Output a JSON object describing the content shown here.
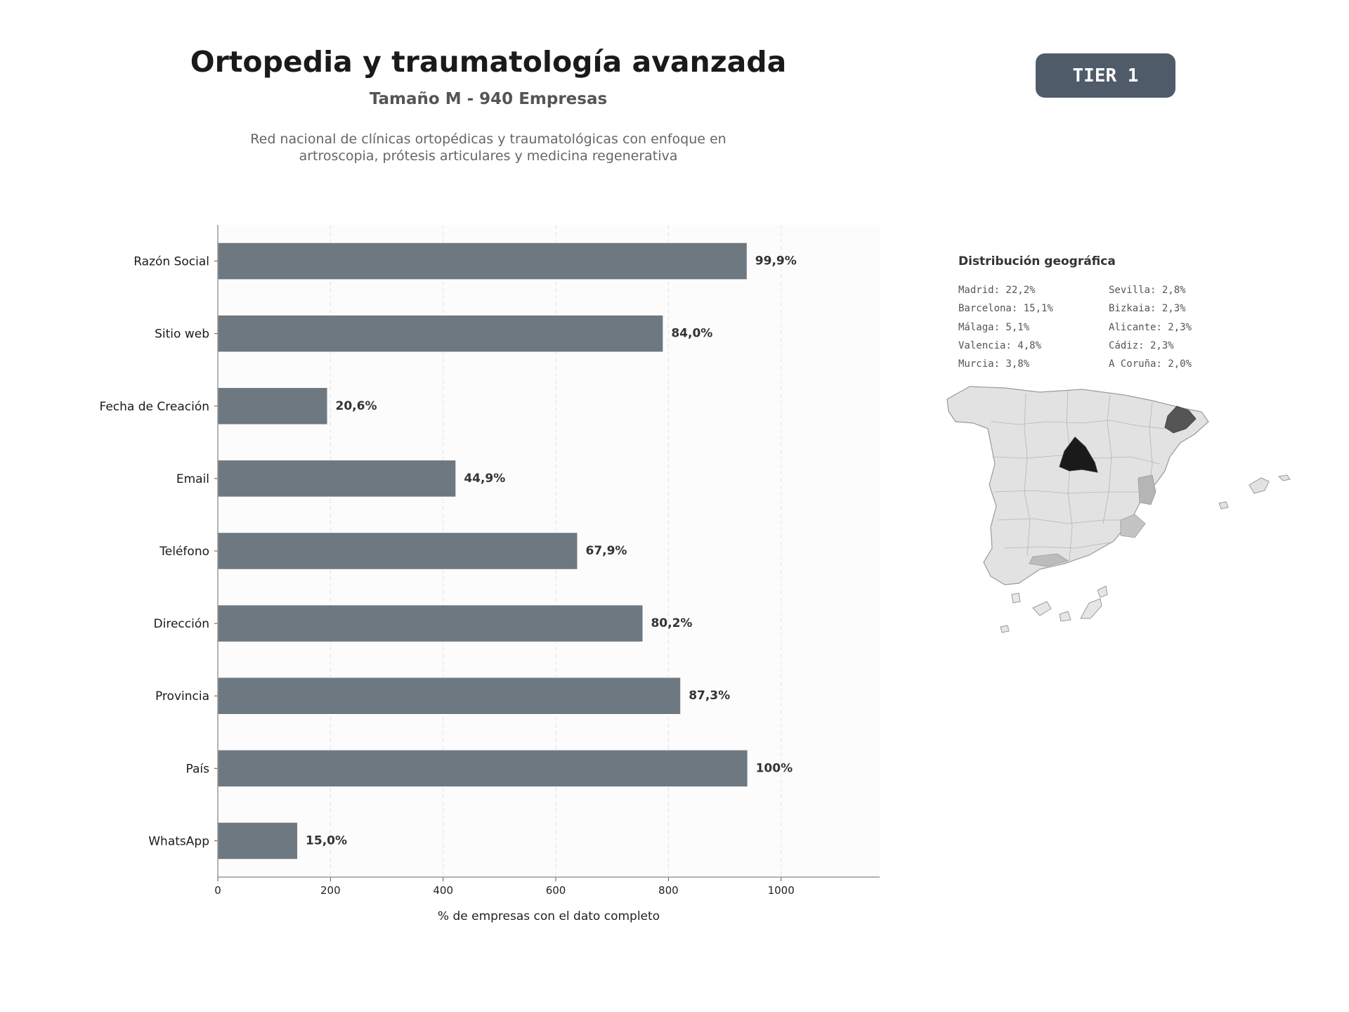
{
  "header": {
    "title": "Ortopedia y traumatología avanzada",
    "subtitle": "Tamaño M - 940 Empresas",
    "description_line1": "Red nacional de clínicas ortopédicas y traumatológicas con enfoque en",
    "description_line2": "artroscopia, prótesis articulares y medicina regenerativa",
    "tier": "TIER 1"
  },
  "chart_data": {
    "type": "bar",
    "orientation": "horizontal",
    "categories": [
      "Razón Social",
      "Sitio web",
      "Fecha de Creación",
      "Email",
      "Teléfono",
      "Dirección",
      "Provincia",
      "País",
      "WhatsApp"
    ],
    "values": [
      939,
      790,
      194,
      422,
      638,
      754,
      821,
      940,
      141
    ],
    "data_labels": [
      "99,9%",
      "84,0%",
      "20,6%",
      "44,9%",
      "67,9%",
      "80,2%",
      "87,3%",
      "100%",
      "15,0%"
    ],
    "xlabel": "% de empresas con el dato completo",
    "ylabel": "",
    "xlim": [
      0,
      1175
    ],
    "xticks": [
      "0",
      "200",
      "400",
      "600",
      "800",
      "1000"
    ],
    "xtick_values": [
      0,
      200,
      400,
      600,
      800,
      1000
    ],
    "grid": "vertical dashed",
    "bar_color": "#6e7881"
  },
  "geo": {
    "title": "Distribución geográfica",
    "col1": [
      "Madrid: 22,2%",
      "Barcelona: 15,1%",
      "Málaga: 5,1%",
      "Valencia: 4,8%",
      "Murcia: 3,8%"
    ],
    "col2": [
      "Sevilla: 2,8%",
      "Bizkaia: 2,3%",
      "Alicante: 2,3%",
      "Cádiz: 2,3%",
      "A Coruña: 2,0%"
    ],
    "map_icon": "spain-provinces-map"
  }
}
